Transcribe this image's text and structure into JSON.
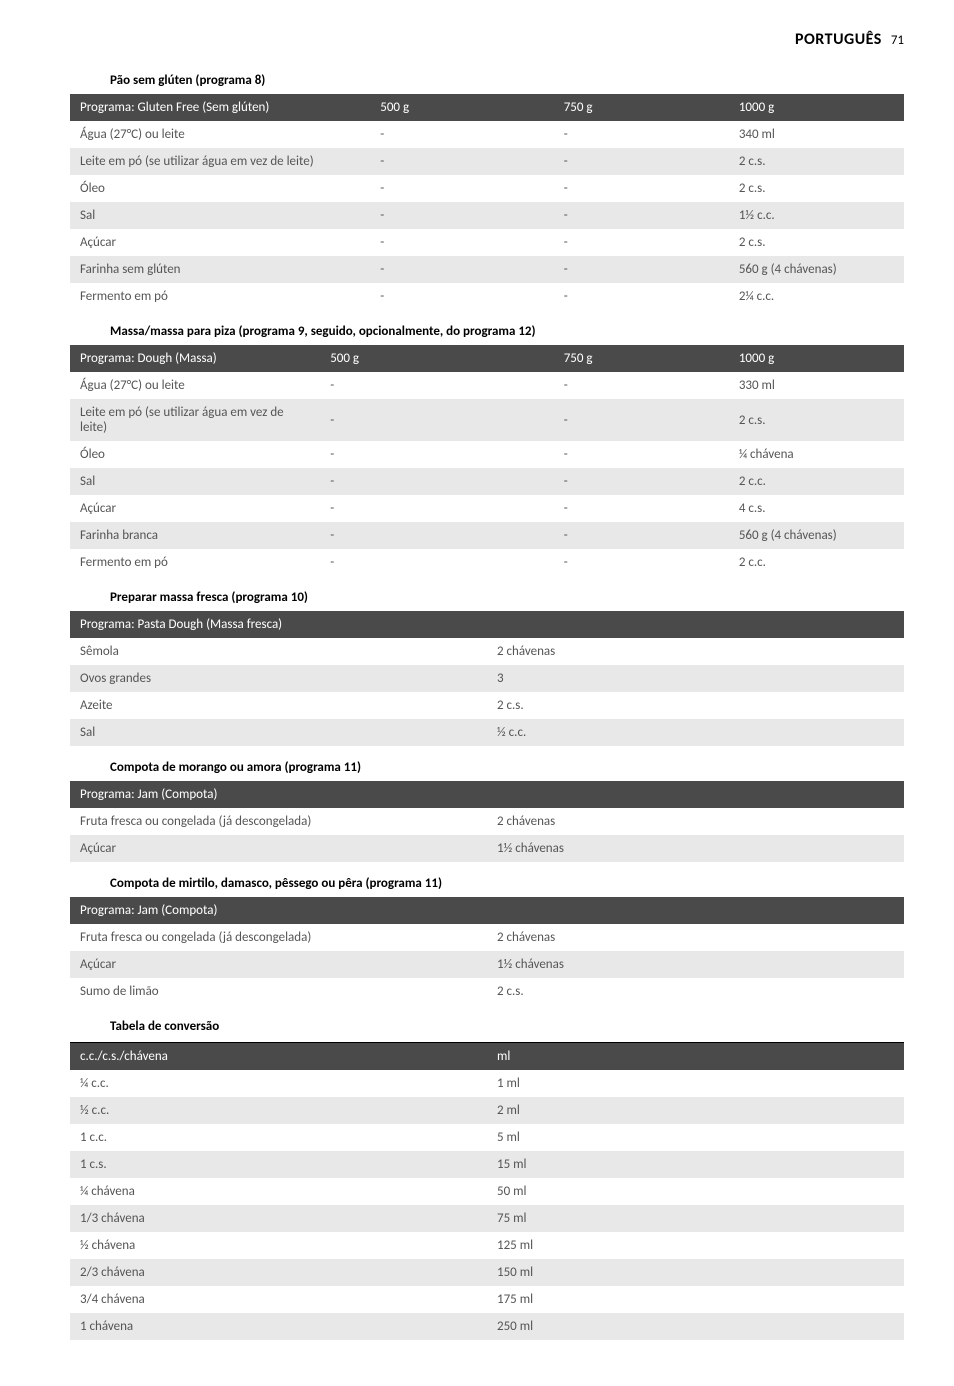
{
  "header": {
    "title": "PORTUGUÊS",
    "pageNumber": "71"
  },
  "sections": [
    {
      "title": "Pão sem glúten (programa 8)",
      "columns": [
        "Programa: Gluten Free (Sem glúten)",
        "500 g",
        "750 g",
        "1000 g"
      ],
      "widths": [
        "36%",
        "22%",
        "21%",
        "21%"
      ],
      "rows": [
        [
          "Água (27°C) ou leite",
          "-",
          "-",
          "340 ml"
        ],
        [
          "Leite em pó (se utilizar água em vez de leite)",
          "-",
          "-",
          "2 c.s."
        ],
        [
          "Óleo",
          "-",
          "-",
          "2 c.s."
        ],
        [
          "Sal",
          "-",
          "-",
          "1½ c.c."
        ],
        [
          "Açúcar",
          "-",
          "-",
          "2 c.s."
        ],
        [
          "Farinha sem glúten",
          "-",
          "-",
          "560 g (4 chávenas)"
        ],
        [
          "Fermento em pó",
          "-",
          "-",
          "2¼ c.c."
        ]
      ]
    },
    {
      "title": "Massa/massa para piza (programa 9, seguido, opcionalmente, do programa 12)",
      "columns": [
        "Programa: Dough (Massa)",
        "500 g",
        "750 g",
        "1000 g"
      ],
      "widths": [
        "30%",
        "28%",
        "21%",
        "21%"
      ],
      "rows": [
        [
          "Água (27°C) ou leite",
          "-",
          "-",
          "330 ml"
        ],
        [
          "Leite em pó (se utilizar água em vez de leite)",
          "-",
          "-",
          "2 c.s."
        ],
        [
          "Óleo",
          "-",
          "-",
          "¼ chávena"
        ],
        [
          "Sal",
          "-",
          "-",
          "2 c.c."
        ],
        [
          "Açúcar",
          "-",
          "-",
          "4 c.s."
        ],
        [
          "Farinha branca",
          "-",
          "-",
          "560 g (4 chávenas)"
        ],
        [
          "Fermento em pó",
          "-",
          "-",
          "2 c.c."
        ]
      ]
    },
    {
      "title": "Preparar massa fresca (programa 10)",
      "columns": [
        "Programa: Pasta Dough (Massa fresca)",
        ""
      ],
      "widths": [
        "50%",
        "50%"
      ],
      "rows": [
        [
          "Sêmola",
          "2 chávenas"
        ],
        [
          "Ovos grandes",
          "3"
        ],
        [
          "Azeite",
          "2 c.s."
        ],
        [
          "Sal",
          "½ c.c."
        ]
      ]
    },
    {
      "title": "Compota de morango ou amora (programa 11)",
      "columns": [
        "Programa: Jam (Compota)",
        ""
      ],
      "widths": [
        "50%",
        "50%"
      ],
      "rows": [
        [
          "Fruta fresca ou congelada (já descongelada)",
          "2 chávenas"
        ],
        [
          "Açúcar",
          "1½ chávenas"
        ]
      ]
    },
    {
      "title": "Compota de mirtilo, damasco, pêssego ou pêra (programa 11)",
      "columns": [
        "Programa: Jam (Compota)",
        ""
      ],
      "widths": [
        "50%",
        "50%"
      ],
      "rows": [
        [
          "Fruta fresca ou congelada (já descongelada)",
          "2 chávenas"
        ],
        [
          "Açúcar",
          "1½ chávenas"
        ],
        [
          "Sumo de limão",
          "2 c.s."
        ]
      ]
    },
    {
      "title": "Tabela de conversão",
      "topRule": true,
      "columns": [
        "c.c./c.s./chávena",
        "ml"
      ],
      "widths": [
        "50%",
        "50%"
      ],
      "rows": [
        [
          "¼ c.c.",
          "1 ml"
        ],
        [
          "½ c.c.",
          "2 ml"
        ],
        [
          "1 c.c.",
          "5 ml"
        ],
        [
          "1 c.s.",
          "15 ml"
        ],
        [
          "¼ chávena",
          "50 ml"
        ],
        [
          "1/3 chávena",
          "75 ml"
        ],
        [
          "½ chávena",
          "125 ml"
        ],
        [
          "2/3 chávena",
          "150 ml"
        ],
        [
          "3/4 chávena",
          "175 ml"
        ],
        [
          "1 chávena",
          "250 ml"
        ]
      ]
    }
  ]
}
